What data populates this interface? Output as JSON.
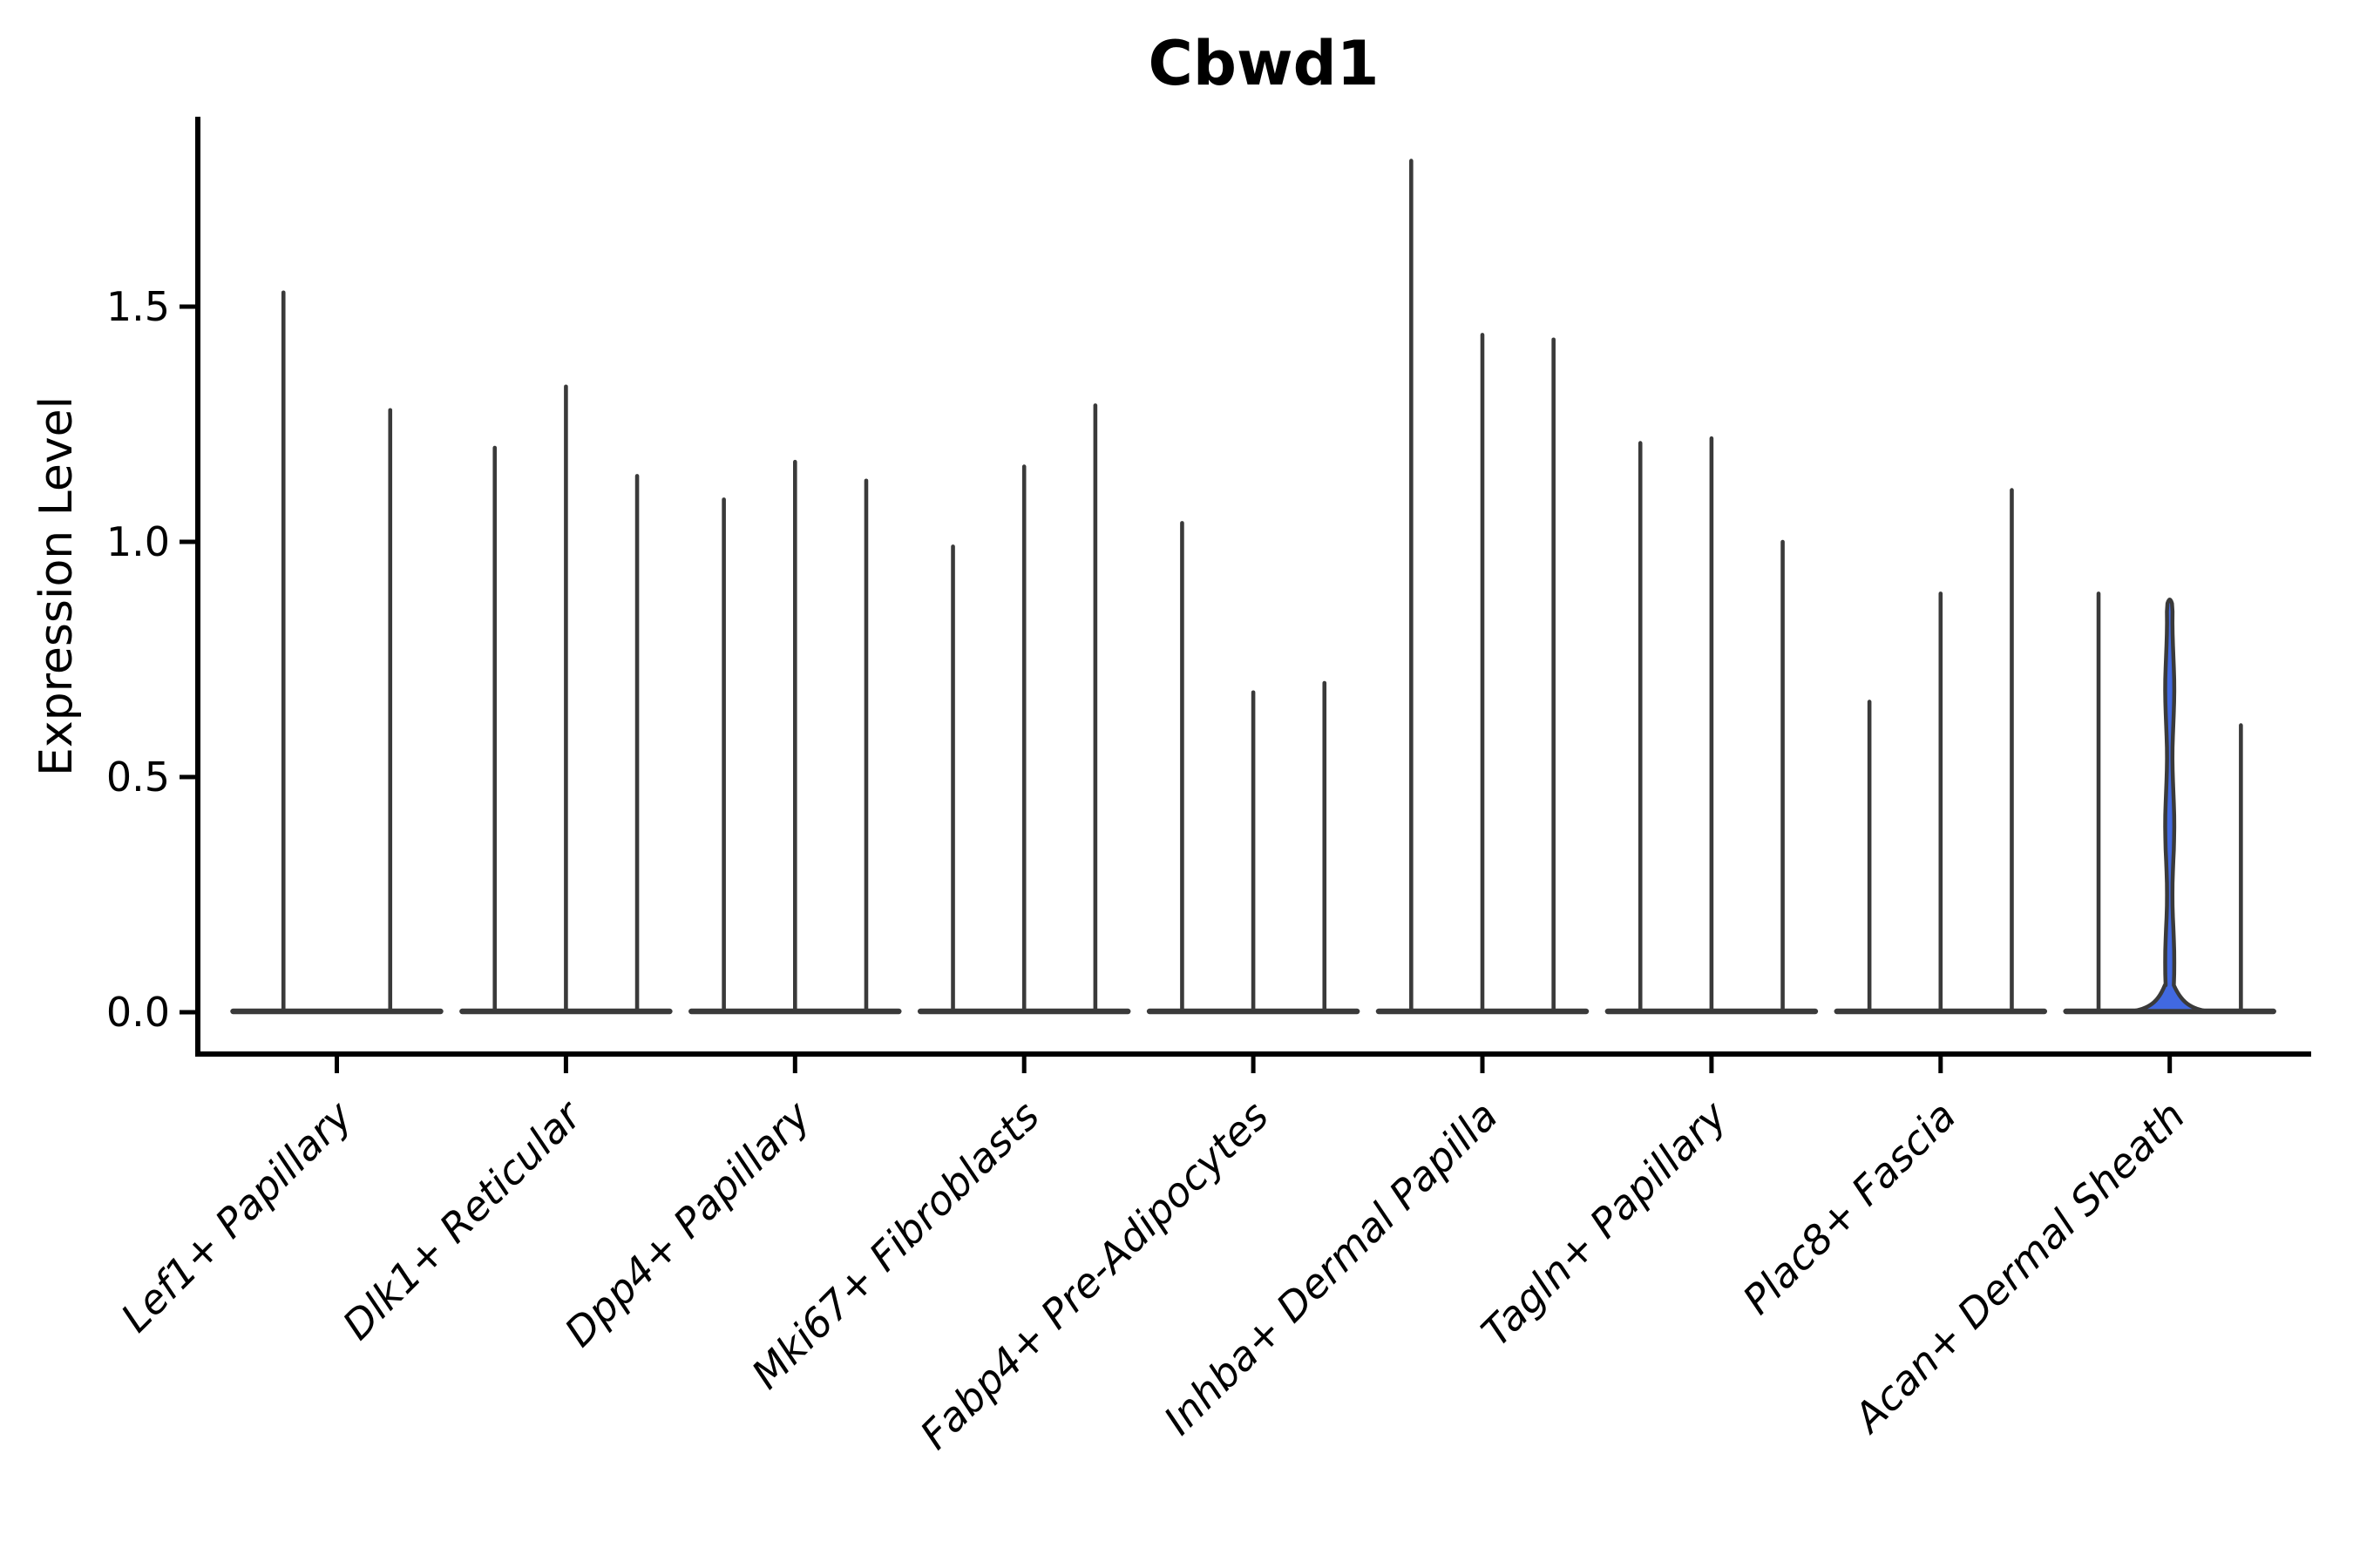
{
  "chart_data": {
    "type": "violin",
    "title": "Cbwd1",
    "ylabel": "Expression Level",
    "xlabel": "",
    "legend": "none",
    "grid": false,
    "ylim": [
      -0.09,
      1.9
    ],
    "ytick_values": [
      0.0,
      0.5,
      1.0,
      1.5
    ],
    "ytick_labels": [
      "0.0",
      "0.5",
      "1.0",
      "1.5"
    ],
    "categories": [
      "Lef1+ Papillary",
      "Dlk1+ Reticular",
      "Dpp4+ Papillary",
      "Mki67+ Fibroblasts",
      "Fabp4+ Pre-Adipocytes",
      "Inhba+ Dermal Papilla",
      "Tagln+ Papillary",
      "Plac8+ Fascia",
      "Acan+ Dermal Sheath"
    ],
    "series_note": "each category holds thin violins (max expression spike height, units = Expression Level); most cells at 0 so violins collapse to a flat base with a thin spike",
    "groups": [
      {
        "category": "Lef1+ Papillary",
        "violins": [
          {
            "max": 1.53
          },
          {
            "max": 1.28
          }
        ]
      },
      {
        "category": "Dlk1+ Reticular",
        "violins": [
          {
            "max": 1.2
          },
          {
            "max": 1.33
          },
          {
            "max": 1.14
          }
        ]
      },
      {
        "category": "Dpp4+ Papillary",
        "violins": [
          {
            "max": 1.09
          },
          {
            "max": 1.17
          },
          {
            "max": 1.13
          }
        ]
      },
      {
        "category": "Mki67+ Fibroblasts",
        "violins": [
          {
            "max": 0.99
          },
          {
            "max": 1.16
          },
          {
            "max": 1.29
          }
        ]
      },
      {
        "category": "Fabp4+ Pre-Adipocytes",
        "violins": [
          {
            "max": 1.04
          },
          {
            "max": 0.68
          },
          {
            "max": 0.7
          }
        ]
      },
      {
        "category": "Inhba+ Dermal Papilla",
        "violins": [
          {
            "max": 1.81
          },
          {
            "max": 1.44
          },
          {
            "max": 1.43
          }
        ]
      },
      {
        "category": "Tagln+ Papillary",
        "violins": [
          {
            "max": 1.21
          },
          {
            "max": 1.22
          },
          {
            "max": 1.0
          }
        ]
      },
      {
        "category": "Plac8+ Fascia",
        "violins": [
          {
            "max": 0.66
          },
          {
            "max": 0.89
          },
          {
            "max": 1.11
          }
        ]
      },
      {
        "category": "Acan+ Dermal Sheath",
        "violins": [
          {
            "max": 0.89
          },
          {
            "max": 0.88,
            "highlight": true,
            "base_bulge": 0.05
          },
          {
            "max": 0.61
          }
        ]
      }
    ],
    "colors": {
      "violin_stroke": "#3a3a3a",
      "highlight_fill": "#4169e1",
      "axis": "#000000",
      "text": "#000000",
      "background": "#ffffff"
    }
  }
}
